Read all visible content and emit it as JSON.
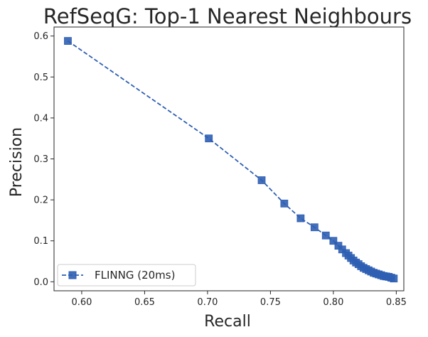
{
  "chart_data": {
    "type": "line",
    "title": "RefSeqG: Top-1 Nearest Neighbours",
    "xlabel": "Recall",
    "ylabel": "Precision",
    "xlim": [
      0.578,
      0.856
    ],
    "ylim": [
      -0.022,
      0.622
    ],
    "xticks": [
      0.6,
      0.65,
      0.7,
      0.75,
      0.8,
      0.85
    ],
    "xtick_labels": [
      "0.60",
      "0.65",
      "0.70",
      "0.75",
      "0.80",
      "0.85"
    ],
    "yticks": [
      0.0,
      0.1,
      0.2,
      0.3,
      0.4,
      0.5,
      0.6
    ],
    "ytick_labels": [
      "0.0",
      "0.1",
      "0.2",
      "0.3",
      "0.4",
      "0.5",
      "0.6"
    ],
    "grid": false,
    "legend": {
      "placement": "lower-left"
    },
    "series": [
      {
        "name": "FLINNG (20ms)",
        "color": "#2f5fb3",
        "line_style": "dashed",
        "marker": "square",
        "x": [
          0.589,
          0.701,
          0.743,
          0.761,
          0.774,
          0.785,
          0.794,
          0.8,
          0.804,
          0.807,
          0.81,
          0.812,
          0.814,
          0.816,
          0.818,
          0.82,
          0.822,
          0.824,
          0.826,
          0.828,
          0.83,
          0.832,
          0.834,
          0.836,
          0.838,
          0.84,
          0.842,
          0.844,
          0.846,
          0.848
        ],
        "y": [
          0.588,
          0.35,
          0.248,
          0.191,
          0.155,
          0.133,
          0.113,
          0.1,
          0.088,
          0.079,
          0.07,
          0.064,
          0.058,
          0.052,
          0.047,
          0.043,
          0.038,
          0.034,
          0.031,
          0.028,
          0.025,
          0.022,
          0.02,
          0.018,
          0.016,
          0.014,
          0.013,
          0.012,
          0.01,
          0.008
        ]
      }
    ]
  }
}
